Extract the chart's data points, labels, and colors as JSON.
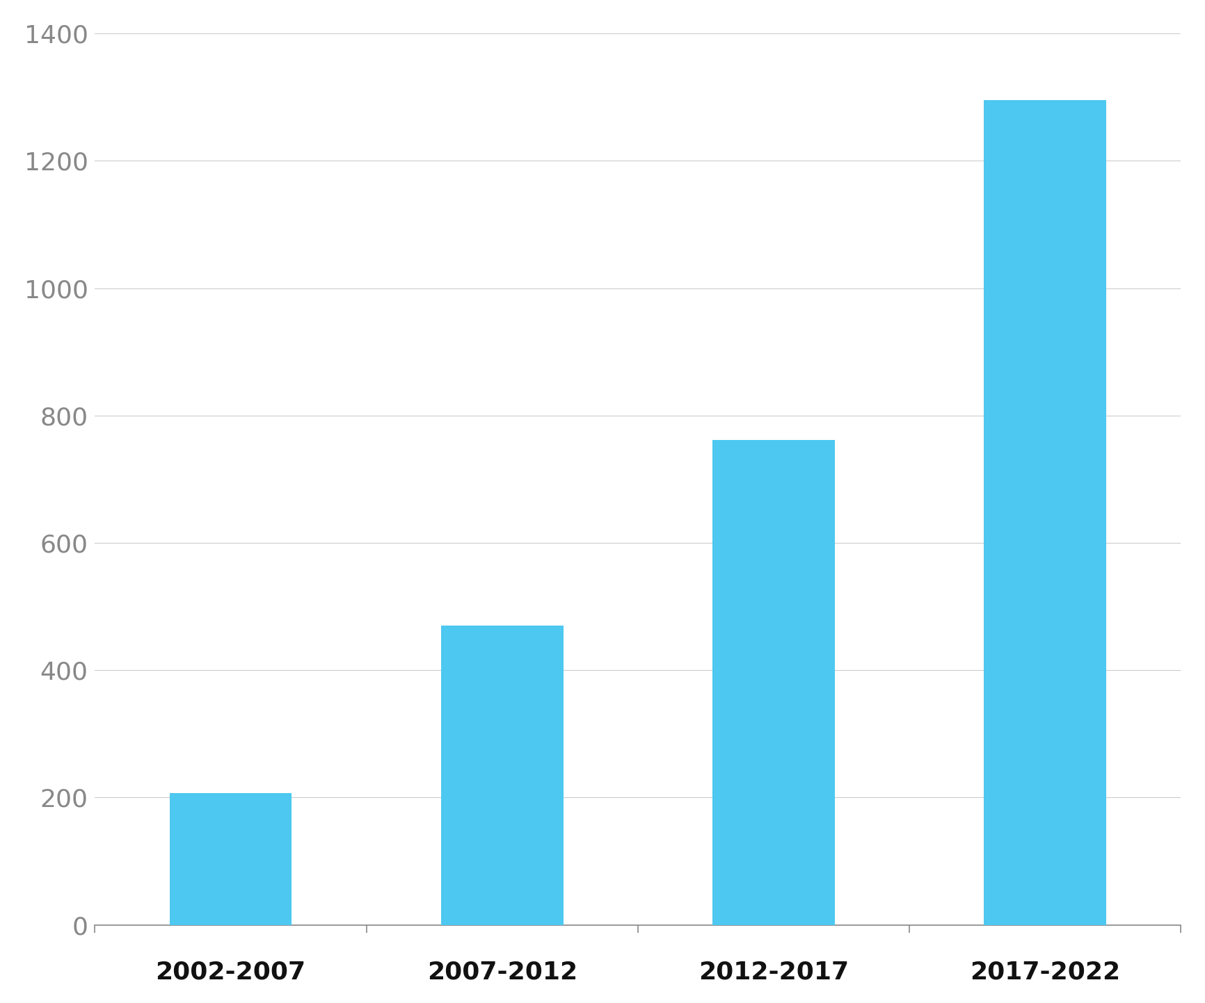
{
  "categories": [
    "2002-2007",
    "2007-2012",
    "2012-2017",
    "2017-2022"
  ],
  "values": [
    207,
    470,
    762,
    1295
  ],
  "bar_color": "#4DC8F0",
  "background_color": "#ffffff",
  "ylim": [
    0,
    1400
  ],
  "yticks": [
    0,
    200,
    400,
    600,
    800,
    1000,
    1200,
    1400
  ],
  "grid_color": "#cccccc",
  "ytick_color": "#888888",
  "xtick_color": "#111111",
  "tick_fontsize": 26,
  "bar_width": 0.45
}
